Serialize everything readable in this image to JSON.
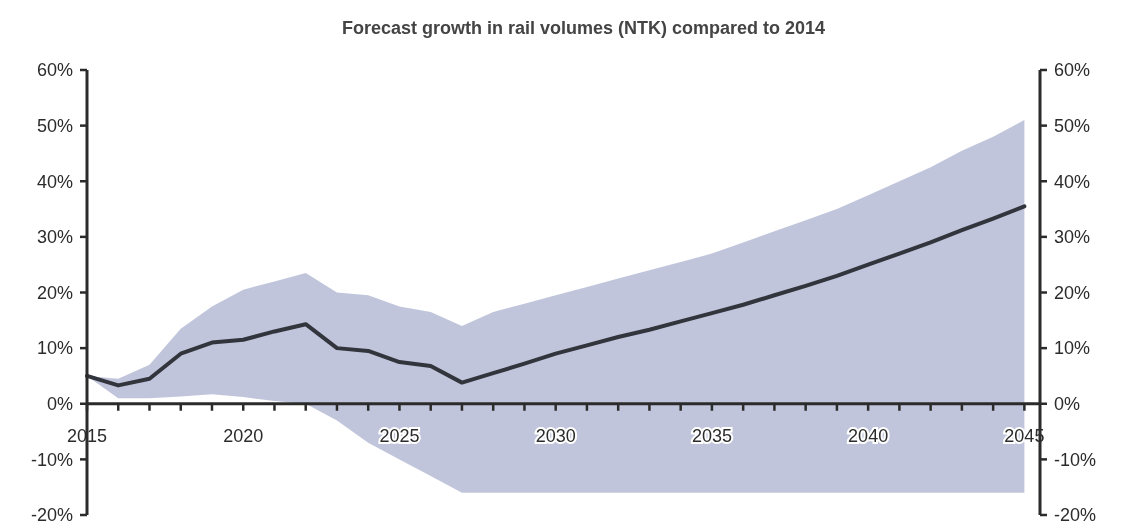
{
  "chart_data": {
    "type": "line",
    "title": "Forecast growth in rail volumes (NTK) compared to 2014",
    "x": [
      2015,
      2016,
      2017,
      2018,
      2019,
      2020,
      2021,
      2022,
      2023,
      2024,
      2025,
      2026,
      2027,
      2028,
      2029,
      2030,
      2031,
      2032,
      2033,
      2034,
      2035,
      2036,
      2037,
      2038,
      2039,
      2040,
      2041,
      2042,
      2043,
      2044,
      2045
    ],
    "series": [
      {
        "color": "#33353d",
        "values": [
          5,
          3.3,
          4.5,
          9,
          11,
          11.5,
          13,
          14.3,
          10,
          9.5,
          7.5,
          6.8,
          3.8,
          5.5,
          7.2,
          9,
          10.5,
          12,
          13.3,
          14.8,
          16.3,
          17.8,
          19.5,
          21.2,
          23,
          25,
          27,
          29,
          31.2,
          33.3,
          35.5
        ],
        "lower": [
          5,
          1,
          1,
          1.3,
          1.7,
          1.2,
          0.5,
          0,
          -3,
          -7,
          -10,
          -13,
          -16,
          -16,
          -16,
          -16,
          -16,
          -16,
          -16,
          -16,
          -16,
          -16,
          -16,
          -16,
          -16,
          -16,
          -16,
          -16,
          -16,
          -16,
          -16
        ],
        "upper": [
          5,
          4.5,
          7,
          13.5,
          17.5,
          20.5,
          22,
          23.5,
          20,
          19.5,
          17.5,
          16.5,
          14,
          16.5,
          18,
          19.5,
          21,
          22.5,
          24,
          25.5,
          27,
          29,
          31,
          33,
          35,
          37.5,
          40,
          42.5,
          45.5,
          48,
          51
        ]
      }
    ],
    "xlim": [
      2015,
      2045.5
    ],
    "xticks": [
      2015,
      {
        "value": 2016,
        "label": null
      },
      {
        "value": 2017,
        "label": null
      },
      {
        "value": 2018,
        "label": null
      },
      {
        "value": 2019,
        "label": null
      },
      2020,
      {
        "value": 2021,
        "label": null
      },
      {
        "value": 2022,
        "label": null
      },
      {
        "value": 2023,
        "label": null
      },
      {
        "value": 2024,
        "label": null
      },
      2025,
      {
        "value": 2026,
        "label": null
      },
      {
        "value": 2027,
        "label": null
      },
      {
        "value": 2028,
        "label": null
      },
      {
        "value": 2029,
        "label": null
      },
      2030,
      {
        "value": 2031,
        "label": null
      },
      {
        "value": 2032,
        "label": null
      },
      {
        "value": 2033,
        "label": null
      },
      {
        "value": 2034,
        "label": null
      },
      2035,
      {
        "value": 2036,
        "label": null
      },
      {
        "value": 2037,
        "label": null
      },
      {
        "value": 2038,
        "label": null
      },
      {
        "value": 2039,
        "label": null
      },
      2040,
      {
        "value": 2041,
        "label": null
      },
      {
        "value": 2042,
        "label": null
      },
      {
        "value": 2043,
        "label": null
      },
      {
        "value": 2044,
        "label": null
      },
      2045
    ],
    "ylim": [
      -20,
      60
    ],
    "yticks": [
      {
        "value": -20,
        "label": "-20%"
      },
      {
        "value": -10,
        "label": "-10%"
      },
      {
        "value": 0,
        "label": "0%"
      },
      {
        "value": 10,
        "label": "10%"
      },
      {
        "value": 20,
        "label": "20%"
      },
      {
        "value": 30,
        "label": "30%"
      },
      {
        "value": 40,
        "label": "40%"
      },
      {
        "value": 50,
        "label": "50%"
      },
      {
        "value": 60,
        "label": "60%"
      }
    ],
    "y2lim": [
      -20,
      60
    ],
    "y2ticks": [
      {
        "value": -20,
        "label": "-20%"
      },
      {
        "value": -10,
        "label": "-10%"
      },
      {
        "value": 0,
        "label": "0%"
      },
      {
        "value": 10,
        "label": "10%"
      },
      {
        "value": 20,
        "label": "20%"
      },
      {
        "value": 30,
        "label": "30%"
      },
      {
        "value": 40,
        "label": "40%"
      },
      {
        "value": 50,
        "label": "50%"
      },
      {
        "value": 60,
        "label": "60%"
      }
    ],
    "grid": false,
    "marker": "none",
    "line_style": "solid"
  }
}
